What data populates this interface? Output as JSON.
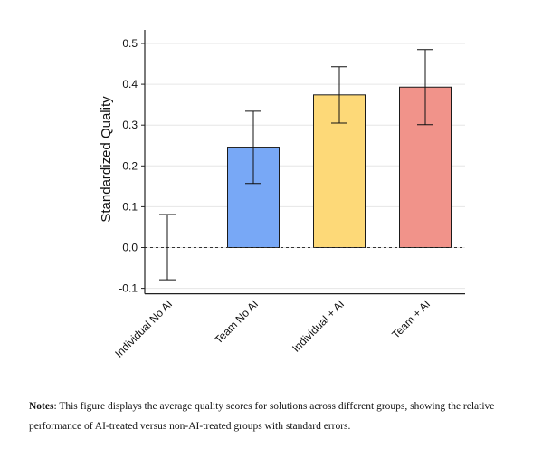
{
  "chart_data": {
    "type": "bar",
    "title": "",
    "xlabel": "",
    "ylabel": "Standardized Quality",
    "categories": [
      "Individual No AI",
      "Team No AI",
      "Individual + AI",
      "Team + AI"
    ],
    "values": [
      0.0,
      0.246,
      0.374,
      0.393
    ],
    "error_low": [
      -0.079,
      0.157,
      0.305,
      0.301
    ],
    "error_high": [
      0.081,
      0.334,
      0.443,
      0.485
    ],
    "colors": [
      "#ffffff",
      "#78a8f6",
      "#fdd978",
      "#f1938a"
    ],
    "yticks": [
      "-0.1",
      "0.0",
      "0.1",
      "0.2",
      "0.3",
      "0.4",
      "0.5"
    ],
    "ylim": [
      -0.11,
      0.52
    ],
    "grid": "horizontal",
    "reference_line": 0.0,
    "legend": "none"
  },
  "notes": {
    "label": "Notes",
    "text": ": This figure displays the average quality scores for solutions across different groups, showing the relative performance of AI-treated versus non-AI-treated groups with standard errors."
  }
}
